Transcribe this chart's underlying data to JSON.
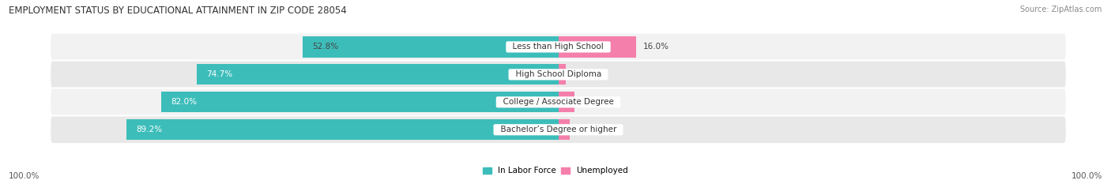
{
  "title": "EMPLOYMENT STATUS BY EDUCATIONAL ATTAINMENT IN ZIP CODE 28054",
  "source": "Source: ZipAtlas.com",
  "categories": [
    "Less than High School",
    "High School Diploma",
    "College / Associate Degree",
    "Bachelor’s Degree or higher"
  ],
  "labor_force": [
    52.8,
    74.7,
    82.0,
    89.2
  ],
  "unemployed": [
    16.0,
    1.5,
    3.3,
    2.3
  ],
  "labor_force_color": "#3DBDBA",
  "unemployed_color": "#F47FAB",
  "title_fontsize": 8.5,
  "source_fontsize": 7,
  "label_fontsize": 7.5,
  "pct_fontsize": 7.5,
  "legend_teal": "#3DBDBA",
  "legend_pink": "#F47FAB",
  "x_left_label": "100.0%",
  "x_right_label": "100.0%",
  "background_color": "#FFFFFF",
  "row_bg_even": "#F2F2F2",
  "row_bg_odd": "#E8E8E8",
  "lf_pct_colors": [
    "#444444",
    "#FFFFFF",
    "#FFFFFF",
    "#FFFFFF"
  ]
}
